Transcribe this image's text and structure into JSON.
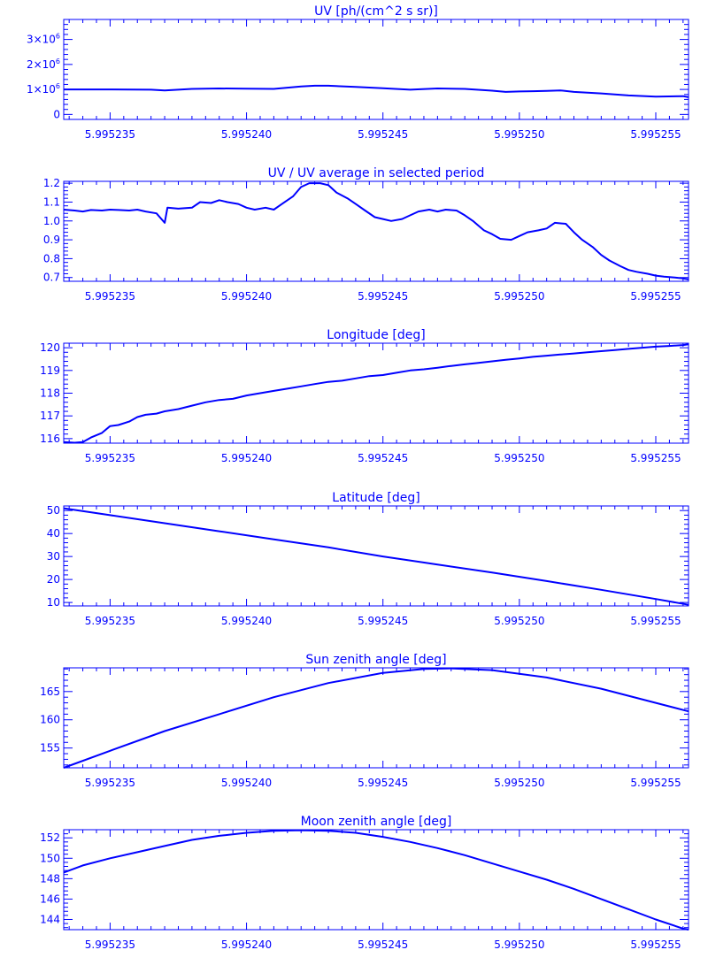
{
  "style": {
    "color": "#0000ff",
    "background": "#ffffff"
  },
  "x_tick_labels": [
    "5.995235",
    "5.995240",
    "5.995245",
    "5.995250",
    "5.995255"
  ],
  "chart_data": [
    {
      "id": "uv",
      "type": "line",
      "title": "UV [ph/(cm^2 s sr)]",
      "xlim": [
        5.9952333,
        5.9952562
      ],
      "ylim": [
        -0.2,
        3.8
      ],
      "xticks": [
        5.995235,
        5.99524,
        5.995245,
        5.99525,
        5.995255
      ],
      "ytick_values": [
        0,
        1,
        2,
        3
      ],
      "ytick_labels": [
        {
          "base": "0",
          "exp": ""
        },
        {
          "base": "1×10",
          "exp": "6"
        },
        {
          "base": "2×10",
          "exp": "6"
        },
        {
          "base": "3×10",
          "exp": "6"
        }
      ],
      "series": [
        {
          "x": [
            5.9952333,
            5.995235,
            5.9952365,
            5.995237,
            5.995238,
            5.995239,
            5.99524,
            5.995241,
            5.995242,
            5.9952425,
            5.995243,
            5.995244,
            5.995245,
            5.995246,
            5.995247,
            5.995248,
            5.995249,
            5.9952495,
            5.99525,
            5.9952505,
            5.995251,
            5.9952515,
            5.995252,
            5.995253,
            5.995254,
            5.995255,
            5.995256,
            5.9952562
          ],
          "y": [
            1.0,
            1.0,
            0.99,
            0.96,
            1.02,
            1.04,
            1.03,
            1.02,
            1.12,
            1.15,
            1.15,
            1.1,
            1.05,
            0.99,
            1.04,
            1.02,
            0.95,
            0.9,
            0.92,
            0.93,
            0.94,
            0.96,
            0.9,
            0.84,
            0.76,
            0.71,
            0.73,
            0.69
          ]
        }
      ]
    },
    {
      "id": "uv-ratio",
      "type": "line",
      "title": "UV / UV average in selected period",
      "xlim": [
        5.9952333,
        5.9952562
      ],
      "ylim": [
        0.68,
        1.21
      ],
      "xticks": [
        5.995235,
        5.99524,
        5.995245,
        5.99525,
        5.995255
      ],
      "ytick_values": [
        0.7,
        0.8,
        0.9,
        1.0,
        1.1,
        1.2
      ],
      "ytick_labels": [
        "0.7",
        "0.8",
        "0.9",
        "1.0",
        "1.1",
        "1.2"
      ],
      "series": [
        {
          "x": [
            5.9952333,
            5.9952337,
            5.995234,
            5.9952343,
            5.9952347,
            5.995235,
            5.9952353,
            5.9952357,
            5.995236,
            5.9952363,
            5.9952367,
            5.995237,
            5.9952371,
            5.9952375,
            5.995238,
            5.9952383,
            5.9952387,
            5.995239,
            5.9952393,
            5.9952397,
            5.99524,
            5.9952403,
            5.9952407,
            5.995241,
            5.9952413,
            5.9952417,
            5.995242,
            5.9952423,
            5.9952427,
            5.995243,
            5.9952433,
            5.9952437,
            5.995244,
            5.9952443,
            5.9952447,
            5.995245,
            5.9952453,
            5.9952457,
            5.995246,
            5.9952463,
            5.9952467,
            5.995247,
            5.9952473,
            5.9952477,
            5.995248,
            5.9952483,
            5.9952487,
            5.995249,
            5.9952493,
            5.9952497,
            5.99525,
            5.9952503,
            5.9952507,
            5.995251,
            5.9952513,
            5.9952517,
            5.995252,
            5.9952523,
            5.9952527,
            5.995253,
            5.9952533,
            5.9952537,
            5.995254,
            5.9952543,
            5.9952547,
            5.995255,
            5.9952553,
            5.9952557,
            5.995256,
            5.9952562
          ],
          "y": [
            1.06,
            1.055,
            1.05,
            1.058,
            1.055,
            1.06,
            1.058,
            1.055,
            1.06,
            1.05,
            1.04,
            0.99,
            1.07,
            1.065,
            1.07,
            1.1,
            1.095,
            1.11,
            1.1,
            1.09,
            1.07,
            1.06,
            1.07,
            1.06,
            1.09,
            1.13,
            1.18,
            1.2,
            1.2,
            1.19,
            1.15,
            1.12,
            1.09,
            1.06,
            1.02,
            1.01,
            1.0,
            1.01,
            1.03,
            1.05,
            1.06,
            1.05,
            1.06,
            1.055,
            1.03,
            1.0,
            0.95,
            0.93,
            0.905,
            0.9,
            0.92,
            0.94,
            0.95,
            0.96,
            0.99,
            0.985,
            0.94,
            0.9,
            0.86,
            0.82,
            0.79,
            0.76,
            0.74,
            0.73,
            0.72,
            0.71,
            0.705,
            0.7,
            0.695,
            0.69
          ]
        }
      ]
    },
    {
      "id": "longitude",
      "type": "line",
      "title": "Longitude [deg]",
      "xlim": [
        5.9952333,
        5.9952562
      ],
      "ylim": [
        115.8,
        120.2
      ],
      "xticks": [
        5.995235,
        5.99524,
        5.995245,
        5.99525,
        5.995255
      ],
      "ytick_values": [
        116,
        117,
        118,
        119,
        120
      ],
      "ytick_labels": [
        "116",
        "117",
        "118",
        "119",
        "120"
      ],
      "series": [
        {
          "x": [
            5.9952333,
            5.9952337,
            5.995234,
            5.9952343,
            5.9952347,
            5.995235,
            5.9952353,
            5.9952357,
            5.995236,
            5.9952363,
            5.9952367,
            5.995237,
            5.9952375,
            5.995238,
            5.9952385,
            5.995239,
            5.9952395,
            5.99524,
            5.9952405,
            5.995241,
            5.9952415,
            5.995242,
            5.9952425,
            5.995243,
            5.9952435,
            5.995244,
            5.9952445,
            5.995245,
            5.9952455,
            5.995246,
            5.9952465,
            5.995247,
            5.9952475,
            5.995248,
            5.9952485,
            5.995249,
            5.9952495,
            5.99525,
            5.9952505,
            5.995251,
            5.9952515,
            5.995252,
            5.9952525,
            5.995253,
            5.9952535,
            5.995254,
            5.9952545,
            5.995255,
            5.9952555,
            5.995256,
            5.9952562
          ],
          "y": [
            115.85,
            115.82,
            115.85,
            116.05,
            116.25,
            116.55,
            116.6,
            116.75,
            116.95,
            117.05,
            117.1,
            117.2,
            117.3,
            117.45,
            117.6,
            117.7,
            117.75,
            117.9,
            118.0,
            118.1,
            118.2,
            118.3,
            118.4,
            118.5,
            118.55,
            118.65,
            118.75,
            118.8,
            118.9,
            119.0,
            119.05,
            119.12,
            119.2,
            119.27,
            119.33,
            119.4,
            119.47,
            119.53,
            119.6,
            119.65,
            119.7,
            119.75,
            119.8,
            119.85,
            119.9,
            119.95,
            120.0,
            120.05,
            120.08,
            120.12,
            120.15
          ]
        }
      ]
    },
    {
      "id": "latitude",
      "type": "line",
      "title": "Latitude [deg]",
      "xlim": [
        5.9952333,
        5.9952562
      ],
      "ylim": [
        8.5,
        52.0
      ],
      "xticks": [
        5.995235,
        5.99524,
        5.995245,
        5.99525,
        5.995255
      ],
      "ytick_values": [
        10,
        20,
        30,
        40,
        50
      ],
      "ytick_labels": [
        "10",
        "20",
        "30",
        "40",
        "50"
      ],
      "series": [
        {
          "x": [
            5.9952333,
            5.995235,
            5.995237,
            5.995239,
            5.995241,
            5.995243,
            5.995245,
            5.995247,
            5.995249,
            5.995251,
            5.995253,
            5.995255,
            5.9952562
          ],
          "y": [
            51.0,
            48.0,
            44.5,
            41.0,
            37.5,
            34.0,
            30.0,
            26.5,
            23.0,
            19.3,
            15.5,
            11.5,
            9.0
          ]
        }
      ]
    },
    {
      "id": "sun-zenith",
      "type": "line",
      "title": "Sun zenith angle [deg]",
      "xlim": [
        5.9952333,
        5.9952562
      ],
      "ylim": [
        151.5,
        169.2
      ],
      "xticks": [
        5.995235,
        5.99524,
        5.995245,
        5.99525,
        5.995255
      ],
      "ytick_values": [
        155,
        160,
        165
      ],
      "ytick_labels": [
        "155",
        "160",
        "165"
      ],
      "series": [
        {
          "x": [
            5.9952333,
            5.995235,
            5.995237,
            5.995239,
            5.995241,
            5.995243,
            5.995245,
            5.9952465,
            5.9952475,
            5.995249,
            5.995251,
            5.995253,
            5.995255,
            5.9952562
          ],
          "y": [
            151.5,
            154.5,
            158.0,
            161.0,
            164.0,
            166.5,
            168.3,
            169.0,
            169.1,
            168.8,
            167.5,
            165.5,
            163.0,
            161.5
          ]
        }
      ]
    },
    {
      "id": "moon-zenith",
      "type": "line",
      "title": "Moon zenith angle [deg]",
      "xlim": [
        5.9952333,
        5.9952562
      ],
      "ylim": [
        143.0,
        152.8
      ],
      "xticks": [
        5.995235,
        5.99524,
        5.995245,
        5.99525,
        5.995255
      ],
      "ytick_values": [
        144,
        146,
        148,
        150,
        152
      ],
      "ytick_labels": [
        "144",
        "146",
        "148",
        "150",
        "152"
      ],
      "series": [
        {
          "x": [
            5.9952333,
            5.995234,
            5.995235,
            5.995236,
            5.995237,
            5.995238,
            5.995239,
            5.99524,
            5.995241,
            5.995242,
            5.995243,
            5.995244,
            5.995245,
            5.995246,
            5.995247,
            5.995248,
            5.995249,
            5.99525,
            5.995251,
            5.995252,
            5.995253,
            5.995254,
            5.995255,
            5.995256,
            5.9952562
          ],
          "y": [
            148.6,
            149.3,
            150.0,
            150.6,
            151.2,
            151.8,
            152.2,
            152.5,
            152.7,
            152.75,
            152.7,
            152.5,
            152.1,
            151.6,
            151.0,
            150.3,
            149.5,
            148.7,
            147.9,
            147.0,
            146.0,
            145.0,
            144.0,
            143.1,
            143.0
          ]
        }
      ]
    }
  ]
}
